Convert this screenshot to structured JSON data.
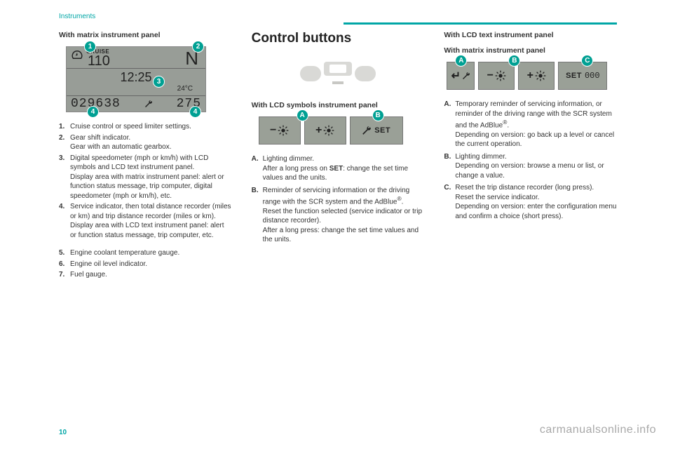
{
  "header": "Instruments",
  "page_number": "10",
  "watermark": "carmanualsonline.info",
  "col1": {
    "subhead": "With matrix instrument panel",
    "panel": {
      "cruise_label": "CRUISE",
      "cruise_value": "110",
      "gear": "N",
      "clock": "12:25",
      "temp": "24°C",
      "odometer": "029638",
      "trip": "275"
    },
    "badges": {
      "b1": "1",
      "b2": "2",
      "b3": "3",
      "b4a": "4",
      "b4b": "4"
    },
    "list": [
      {
        "n": "1.",
        "t": "Cruise control or speed limiter settings."
      },
      {
        "n": "2.",
        "t": "Gear shift indicator.\nGear with an automatic gearbox."
      },
      {
        "n": "3.",
        "t": "Digital speedometer (mph or km/h) with LCD symbols and LCD text instrument panel.\nDisplay area with matrix instrument panel: alert or function status message, trip computer, digital speedometer (mph or km/h), etc."
      },
      {
        "n": "4.",
        "t": "Service indicator, then total distance recorder (miles or km) and trip distance recorder (miles or km).\nDisplay area with LCD text instrument panel: alert or function status message, trip computer, etc."
      }
    ],
    "list2": [
      {
        "n": "5.",
        "t": "Engine coolant temperature gauge."
      },
      {
        "n": "6.",
        "t": "Engine oil level indicator."
      },
      {
        "n": "7.",
        "t": "Fuel gauge."
      }
    ]
  },
  "col2": {
    "heading": "Control buttons",
    "subhead": "With LCD symbols instrument panel",
    "badges": {
      "A": "A",
      "B": "B"
    },
    "set_label": "SET",
    "list": [
      {
        "n": "A.",
        "t": "Lighting dimmer.\nAfter a long press on SET: change the set time values and the units.",
        "bold": "SET"
      },
      {
        "n": "B.",
        "t": "Reminder of servicing information or the driving range with the SCR system and the AdBlue®.\nReset the function selected (service indicator or trip distance recorder).\nAfter a long press: change the set time values and the units."
      }
    ]
  },
  "col3": {
    "subhead1": "With LCD text instrument panel",
    "subhead2": "With matrix instrument panel",
    "badges": {
      "A": "A",
      "B": "B",
      "C": "C"
    },
    "set_label": "SET",
    "zeros": "000",
    "list": [
      {
        "n": "A.",
        "t": "Temporary reminder of servicing information, or reminder of the driving range with the SCR system and the AdBlue®.\nDepending on version: go back up a level or cancel the current operation."
      },
      {
        "n": "B.",
        "t": "Lighting dimmer.\nDepending on version: browse a menu or list, or change a value."
      },
      {
        "n": "C.",
        "t": "Reset the trip distance recorder (long press).\nReset the service indicator.\nDepending on version: enter the configuration menu and confirm a choice (short press)."
      }
    ]
  }
}
